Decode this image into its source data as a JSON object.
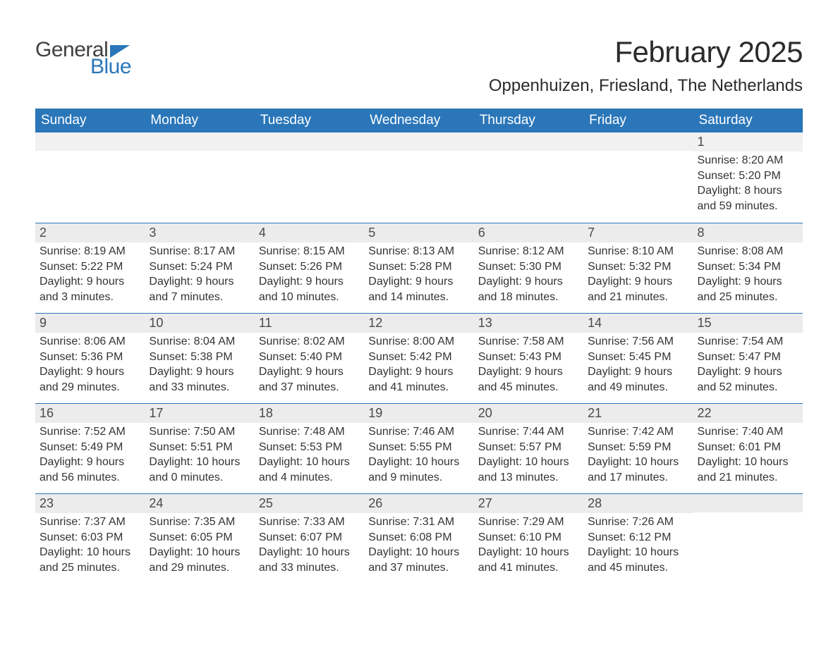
{
  "brand": {
    "word1": "General",
    "word2": "Blue"
  },
  "colors": {
    "accent": "#2a76b9",
    "header_text": "#ffffff",
    "daynum_bg": "#ececec",
    "body_text": "#333333",
    "rule": "#2a76b9",
    "bg": "#ffffff"
  },
  "title": "February 2025",
  "location": "Oppenhuizen, Friesland, The Netherlands",
  "days_of_week": [
    "Sunday",
    "Monday",
    "Tuesday",
    "Wednesday",
    "Thursday",
    "Friday",
    "Saturday"
  ],
  "weeks": [
    [
      {
        "day": "",
        "sunrise": "",
        "sunset": "",
        "daylight_a": "",
        "daylight_b": ""
      },
      {
        "day": "",
        "sunrise": "",
        "sunset": "",
        "daylight_a": "",
        "daylight_b": ""
      },
      {
        "day": "",
        "sunrise": "",
        "sunset": "",
        "daylight_a": "",
        "daylight_b": ""
      },
      {
        "day": "",
        "sunrise": "",
        "sunset": "",
        "daylight_a": "",
        "daylight_b": ""
      },
      {
        "day": "",
        "sunrise": "",
        "sunset": "",
        "daylight_a": "",
        "daylight_b": ""
      },
      {
        "day": "",
        "sunrise": "",
        "sunset": "",
        "daylight_a": "",
        "daylight_b": ""
      },
      {
        "day": "1",
        "sunrise": "Sunrise: 8:20 AM",
        "sunset": "Sunset: 5:20 PM",
        "daylight_a": "Daylight: 8 hours",
        "daylight_b": "and 59 minutes."
      }
    ],
    [
      {
        "day": "2",
        "sunrise": "Sunrise: 8:19 AM",
        "sunset": "Sunset: 5:22 PM",
        "daylight_a": "Daylight: 9 hours",
        "daylight_b": "and 3 minutes."
      },
      {
        "day": "3",
        "sunrise": "Sunrise: 8:17 AM",
        "sunset": "Sunset: 5:24 PM",
        "daylight_a": "Daylight: 9 hours",
        "daylight_b": "and 7 minutes."
      },
      {
        "day": "4",
        "sunrise": "Sunrise: 8:15 AM",
        "sunset": "Sunset: 5:26 PM",
        "daylight_a": "Daylight: 9 hours",
        "daylight_b": "and 10 minutes."
      },
      {
        "day": "5",
        "sunrise": "Sunrise: 8:13 AM",
        "sunset": "Sunset: 5:28 PM",
        "daylight_a": "Daylight: 9 hours",
        "daylight_b": "and 14 minutes."
      },
      {
        "day": "6",
        "sunrise": "Sunrise: 8:12 AM",
        "sunset": "Sunset: 5:30 PM",
        "daylight_a": "Daylight: 9 hours",
        "daylight_b": "and 18 minutes."
      },
      {
        "day": "7",
        "sunrise": "Sunrise: 8:10 AM",
        "sunset": "Sunset: 5:32 PM",
        "daylight_a": "Daylight: 9 hours",
        "daylight_b": "and 21 minutes."
      },
      {
        "day": "8",
        "sunrise": "Sunrise: 8:08 AM",
        "sunset": "Sunset: 5:34 PM",
        "daylight_a": "Daylight: 9 hours",
        "daylight_b": "and 25 minutes."
      }
    ],
    [
      {
        "day": "9",
        "sunrise": "Sunrise: 8:06 AM",
        "sunset": "Sunset: 5:36 PM",
        "daylight_a": "Daylight: 9 hours",
        "daylight_b": "and 29 minutes."
      },
      {
        "day": "10",
        "sunrise": "Sunrise: 8:04 AM",
        "sunset": "Sunset: 5:38 PM",
        "daylight_a": "Daylight: 9 hours",
        "daylight_b": "and 33 minutes."
      },
      {
        "day": "11",
        "sunrise": "Sunrise: 8:02 AM",
        "sunset": "Sunset: 5:40 PM",
        "daylight_a": "Daylight: 9 hours",
        "daylight_b": "and 37 minutes."
      },
      {
        "day": "12",
        "sunrise": "Sunrise: 8:00 AM",
        "sunset": "Sunset: 5:42 PM",
        "daylight_a": "Daylight: 9 hours",
        "daylight_b": "and 41 minutes."
      },
      {
        "day": "13",
        "sunrise": "Sunrise: 7:58 AM",
        "sunset": "Sunset: 5:43 PM",
        "daylight_a": "Daylight: 9 hours",
        "daylight_b": "and 45 minutes."
      },
      {
        "day": "14",
        "sunrise": "Sunrise: 7:56 AM",
        "sunset": "Sunset: 5:45 PM",
        "daylight_a": "Daylight: 9 hours",
        "daylight_b": "and 49 minutes."
      },
      {
        "day": "15",
        "sunrise": "Sunrise: 7:54 AM",
        "sunset": "Sunset: 5:47 PM",
        "daylight_a": "Daylight: 9 hours",
        "daylight_b": "and 52 minutes."
      }
    ],
    [
      {
        "day": "16",
        "sunrise": "Sunrise: 7:52 AM",
        "sunset": "Sunset: 5:49 PM",
        "daylight_a": "Daylight: 9 hours",
        "daylight_b": "and 56 minutes."
      },
      {
        "day": "17",
        "sunrise": "Sunrise: 7:50 AM",
        "sunset": "Sunset: 5:51 PM",
        "daylight_a": "Daylight: 10 hours",
        "daylight_b": "and 0 minutes."
      },
      {
        "day": "18",
        "sunrise": "Sunrise: 7:48 AM",
        "sunset": "Sunset: 5:53 PM",
        "daylight_a": "Daylight: 10 hours",
        "daylight_b": "and 4 minutes."
      },
      {
        "day": "19",
        "sunrise": "Sunrise: 7:46 AM",
        "sunset": "Sunset: 5:55 PM",
        "daylight_a": "Daylight: 10 hours",
        "daylight_b": "and 9 minutes."
      },
      {
        "day": "20",
        "sunrise": "Sunrise: 7:44 AM",
        "sunset": "Sunset: 5:57 PM",
        "daylight_a": "Daylight: 10 hours",
        "daylight_b": "and 13 minutes."
      },
      {
        "day": "21",
        "sunrise": "Sunrise: 7:42 AM",
        "sunset": "Sunset: 5:59 PM",
        "daylight_a": "Daylight: 10 hours",
        "daylight_b": "and 17 minutes."
      },
      {
        "day": "22",
        "sunrise": "Sunrise: 7:40 AM",
        "sunset": "Sunset: 6:01 PM",
        "daylight_a": "Daylight: 10 hours",
        "daylight_b": "and 21 minutes."
      }
    ],
    [
      {
        "day": "23",
        "sunrise": "Sunrise: 7:37 AM",
        "sunset": "Sunset: 6:03 PM",
        "daylight_a": "Daylight: 10 hours",
        "daylight_b": "and 25 minutes."
      },
      {
        "day": "24",
        "sunrise": "Sunrise: 7:35 AM",
        "sunset": "Sunset: 6:05 PM",
        "daylight_a": "Daylight: 10 hours",
        "daylight_b": "and 29 minutes."
      },
      {
        "day": "25",
        "sunrise": "Sunrise: 7:33 AM",
        "sunset": "Sunset: 6:07 PM",
        "daylight_a": "Daylight: 10 hours",
        "daylight_b": "and 33 minutes."
      },
      {
        "day": "26",
        "sunrise": "Sunrise: 7:31 AM",
        "sunset": "Sunset: 6:08 PM",
        "daylight_a": "Daylight: 10 hours",
        "daylight_b": "and 37 minutes."
      },
      {
        "day": "27",
        "sunrise": "Sunrise: 7:29 AM",
        "sunset": "Sunset: 6:10 PM",
        "daylight_a": "Daylight: 10 hours",
        "daylight_b": "and 41 minutes."
      },
      {
        "day": "28",
        "sunrise": "Sunrise: 7:26 AM",
        "sunset": "Sunset: 6:12 PM",
        "daylight_a": "Daylight: 10 hours",
        "daylight_b": "and 45 minutes."
      },
      {
        "day": "",
        "sunrise": "",
        "sunset": "",
        "daylight_a": "",
        "daylight_b": ""
      }
    ]
  ]
}
